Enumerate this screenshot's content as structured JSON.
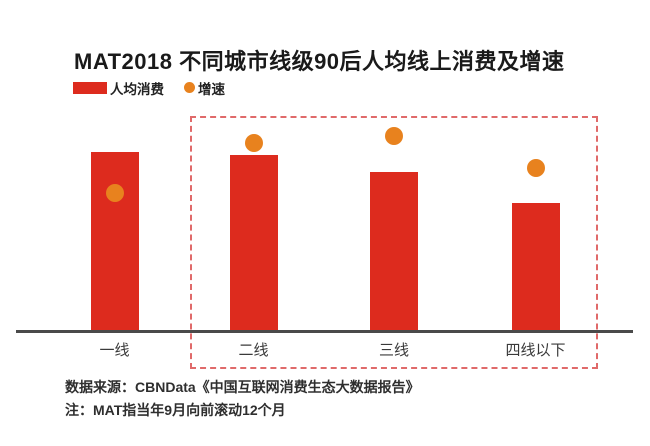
{
  "title": "MAT2018 不同城市线级90后人均线上消费及增速",
  "legend": {
    "bar_label": "人均消费",
    "dot_label": "增速"
  },
  "colors": {
    "bar": "#DD2B1E",
    "dot": "#E8821E",
    "highlight_box": "#E06A6A",
    "axis": "#4A4A4A",
    "title_text": "#1A1A1A",
    "body_text": "#2E2E2E"
  },
  "chart_data": {
    "type": "bar",
    "title": "MAT2018 不同城市线级90后人均线上消费及增速",
    "categories": [
      "一线",
      "二线",
      "三线",
      "四线以下"
    ],
    "series": [
      {
        "name": "人均消费",
        "type": "bar",
        "relative_values": [
          1.0,
          0.983,
          0.889,
          0.717
        ]
      },
      {
        "name": "增速",
        "type": "scatter",
        "relative_values": [
          0.772,
          1.05,
          1.089,
          0.911
        ]
      }
    ],
    "value_axis": "none — chart shows no ticks, gridlines or numeric data labels; values are relative estimates from bar/dot heights",
    "highlighted_categories": [
      "二线",
      "三线",
      "四线以下"
    ],
    "legend_position": "top-left",
    "grid": false
  },
  "footer": {
    "source": "数据来源：CBNData《中国互联网消费生态大数据报告》",
    "note": "注：MAT指当年9月向前滚动12个月"
  }
}
